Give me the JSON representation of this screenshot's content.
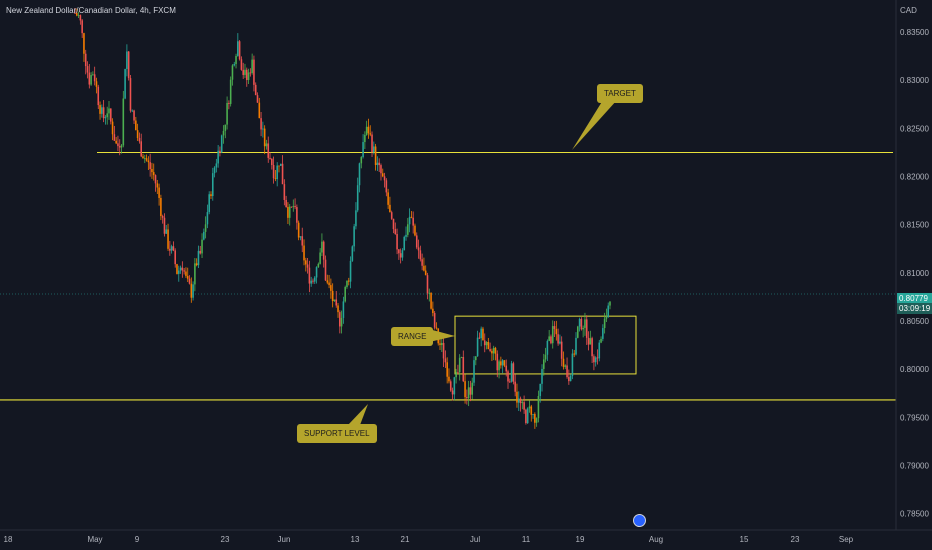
{
  "header": {
    "title": "New Zealand Dollar/Canadian Dollar, 4h, FXCM"
  },
  "price_axis": {
    "currency": "CAD",
    "ticks": [
      "0.83500",
      "0.83000",
      "0.82500",
      "0.82000",
      "0.81500",
      "0.81000",
      "0.80500",
      "0.80000",
      "0.79500",
      "0.79000",
      "0.78500"
    ],
    "current_price": "0.80779",
    "countdown": "03:09:19"
  },
  "time_axis": {
    "ticks": [
      "18",
      "May",
      "9",
      "23",
      "Jun",
      "13",
      "21",
      "Jul",
      "11",
      "19",
      "Aug",
      "15",
      "23",
      "Sep"
    ]
  },
  "annotations": {
    "target": "TARGET",
    "range": "RANGE",
    "support": "SUPPORT LEVEL"
  },
  "colors": {
    "background": "#131722",
    "bull": "#26a69a",
    "bull_bright": "#4caf50",
    "bear": "#ef5350",
    "level_line": "#e8e13a",
    "callout": "#b5a52c"
  },
  "chart_data": {
    "type": "candlestick",
    "symbol": "NZDCAD",
    "interval": "4h",
    "ylim": [
      0.7835,
      0.8375
    ],
    "horizontal_levels": [
      {
        "label": "TARGET",
        "price": 0.8225
      },
      {
        "label": "SUPPORT LEVEL",
        "price": 0.7968
      }
    ],
    "range_box": {
      "label": "RANGE",
      "top": 0.8055,
      "bottom": 0.7995,
      "from": "Jun 27",
      "to": "Jul 27"
    },
    "close_path": [
      0.837,
      0.8365,
      0.833,
      0.83,
      0.831,
      0.828,
      0.826,
      0.827,
      0.825,
      0.823,
      0.824,
      0.834,
      0.827,
      0.825,
      0.823,
      0.822,
      0.821,
      0.82,
      0.818,
      0.815,
      0.813,
      0.812,
      0.81,
      0.811,
      0.809,
      0.808,
      0.811,
      0.812,
      0.815,
      0.818,
      0.821,
      0.823,
      0.825,
      0.828,
      0.832,
      0.834,
      0.831,
      0.83,
      0.832,
      0.828,
      0.825,
      0.823,
      0.822,
      0.82,
      0.822,
      0.818,
      0.816,
      0.817,
      0.814,
      0.812,
      0.81,
      0.809,
      0.811,
      0.813,
      0.809,
      0.808,
      0.806,
      0.805,
      0.808,
      0.81,
      0.815,
      0.82,
      0.824,
      0.825,
      0.823,
      0.821,
      0.82,
      0.818,
      0.815,
      0.813,
      0.812,
      0.814,
      0.816,
      0.814,
      0.812,
      0.81,
      0.808,
      0.805,
      0.803,
      0.802,
      0.8,
      0.798,
      0.799,
      0.801,
      0.797,
      0.798,
      0.801,
      0.804,
      0.803,
      0.801,
      0.802,
      0.8,
      0.801,
      0.799,
      0.8,
      0.797,
      0.796,
      0.795,
      0.796,
      0.794,
      0.798,
      0.802,
      0.803,
      0.804,
      0.803,
      0.801,
      0.799,
      0.801,
      0.804,
      0.805,
      0.804,
      0.802,
      0.801,
      0.803,
      0.805,
      0.8078
    ]
  }
}
